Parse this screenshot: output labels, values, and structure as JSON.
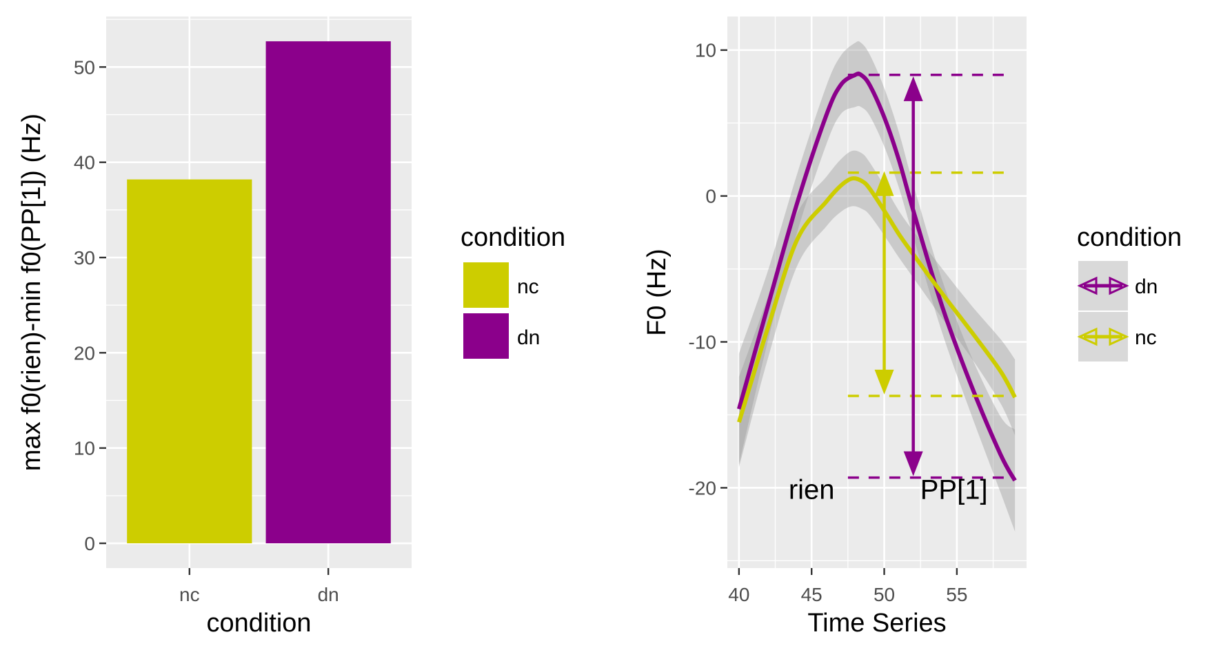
{
  "colors": {
    "nc": "#cdcd00",
    "dn": "#8b008b",
    "panel": "#ebebeb",
    "grid": "#ffffff"
  },
  "chart_data": [
    {
      "type": "bar",
      "categories": [
        "nc",
        "dn"
      ],
      "values": [
        38.2,
        52.7
      ],
      "xlabel": "condition",
      "ylabel": "max f0(rien)-min f0(PP[1]) (Hz)",
      "ylim": [
        -2.6,
        55.3
      ],
      "yticks": [
        "0",
        "10",
        "20",
        "30",
        "40",
        "50"
      ],
      "grid": true,
      "legend": {
        "title": "condition",
        "placement": "right",
        "entries": [
          "nc",
          "dn"
        ]
      }
    },
    {
      "type": "line",
      "xlabel": "Time Series",
      "ylabel": "F0 (Hz)",
      "xlim": [
        39.2,
        59.8
      ],
      "ylim": [
        -25.5,
        12.3
      ],
      "xticks": [
        "40",
        "45",
        "50",
        "55"
      ],
      "yticks": [
        "10",
        "0",
        "-10",
        "-20"
      ],
      "grid": true,
      "series": [
        {
          "name": "dn",
          "x": [
            40,
            42,
            44,
            46,
            47,
            48,
            48.4,
            49,
            50,
            51,
            52,
            54,
            56,
            58,
            59
          ],
          "y": [
            -14.6,
            -7.5,
            -0.5,
            5.5,
            7.6,
            8.3,
            8.3,
            7.6,
            5.4,
            2.5,
            -1.0,
            -7.6,
            -13.0,
            -17.7,
            -19.5
          ],
          "ci_halfwidth": [
            3.8,
            2.4,
            2.0,
            2.0,
            2.0,
            2.2,
            2.2,
            2.1,
            2.0,
            1.9,
            1.8,
            1.8,
            2.0,
            2.6,
            3.5
          ]
        },
        {
          "name": "nc",
          "x": [
            40,
            42,
            44,
            46,
            47,
            47.8,
            48.5,
            49,
            50,
            51,
            52,
            54,
            56,
            58,
            59
          ],
          "y": [
            -15.5,
            -9.0,
            -3.0,
            -0.4,
            0.7,
            1.2,
            1.0,
            0.5,
            -1.0,
            -2.6,
            -4.0,
            -6.7,
            -9.3,
            -12.0,
            -13.8
          ],
          "ci_halfwidth": [
            3.1,
            2.1,
            1.8,
            1.7,
            1.8,
            1.9,
            1.9,
            1.8,
            1.7,
            1.6,
            1.6,
            1.7,
            1.8,
            2.2,
            2.6
          ]
        }
      ],
      "reference_lines": [
        {
          "series": "dn",
          "y": 8.3,
          "x0": 47.5,
          "x1": 58.5
        },
        {
          "series": "nc",
          "y": 1.6,
          "x0": 47.5,
          "x1": 58.5
        },
        {
          "series": "nc",
          "y": -13.7,
          "x0": 47.5,
          "x1": 58.5
        },
        {
          "series": "dn",
          "y": -19.3,
          "x0": 47.5,
          "x1": 58.5
        }
      ],
      "arrows": [
        {
          "series": "dn",
          "x": 52,
          "y0": 8.2,
          "y1": -19.2
        },
        {
          "series": "nc",
          "x": 50,
          "y0": 1.7,
          "y1": -13.6
        }
      ],
      "annotations": [
        {
          "text": "rien",
          "x": 45,
          "y": -20.1
        },
        {
          "text": "PP[1]",
          "x": 54.8,
          "y": -20.1
        }
      ],
      "legend": {
        "title": "condition",
        "placement": "right",
        "entries": [
          "dn",
          "nc"
        ]
      }
    }
  ]
}
